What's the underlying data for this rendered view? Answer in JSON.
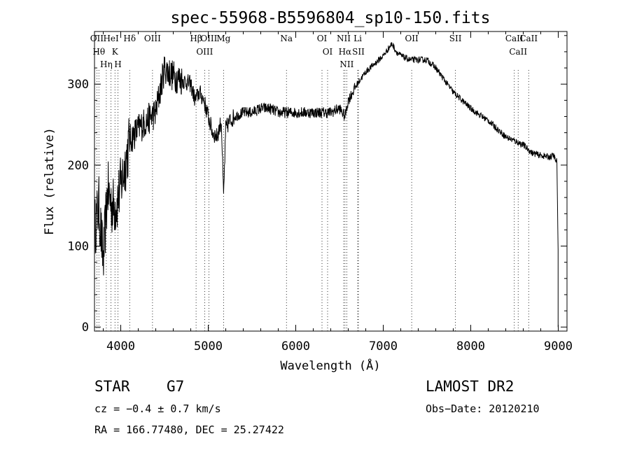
{
  "chart_data": {
    "type": "line",
    "title": "spec-55968-B5596804_sp10-150.fits",
    "xlabel": "Wavelength (Å)",
    "ylabel": "Flux (relative)",
    "xlim": [
      3700,
      9100
    ],
    "ylim": [
      -5,
      365
    ],
    "x_ticks": [
      4000,
      5000,
      6000,
      7000,
      8000,
      9000
    ],
    "y_ticks": [
      0,
      100,
      200,
      300
    ],
    "grid": false,
    "series": [
      {
        "x": [
          3700,
          3750,
          3800,
          3850,
          3900,
          3950,
          4000,
          4050,
          4100,
          4200,
          4300,
          4400,
          4500,
          4550,
          4600,
          4700,
          4800,
          4850,
          4900,
          4950,
          5000,
          5050,
          5100,
          5150,
          5175,
          5200,
          5250,
          5300,
          5400,
          5500,
          5600,
          5700,
          5800,
          5900,
          6000,
          6100,
          6200,
          6300,
          6400,
          6500,
          6563,
          6600,
          6700,
          6800,
          6900,
          7000,
          7100,
          7150,
          7200,
          7300,
          7400,
          7500,
          7600,
          7700,
          7800,
          7900,
          8000,
          8100,
          8200,
          8300,
          8400,
          8500,
          8600,
          8700,
          8800,
          8900,
          8950,
          8970,
          8985,
          8998
        ],
        "y": [
          120,
          150,
          80,
          170,
          150,
          150,
          175,
          200,
          230,
          245,
          255,
          265,
          320,
          315,
          310,
          305,
          300,
          280,
          290,
          280,
          260,
          240,
          235,
          255,
          160,
          245,
          255,
          260,
          265,
          265,
          270,
          270,
          265,
          265,
          265,
          265,
          265,
          265,
          265,
          270,
          260,
          280,
          300,
          315,
          325,
          335,
          350,
          340,
          335,
          330,
          330,
          330,
          320,
          305,
          290,
          280,
          270,
          262,
          255,
          245,
          235,
          230,
          225,
          215,
          212,
          210,
          212,
          205,
          205,
          95
        ]
      }
    ],
    "line_labels": [
      {
        "label": "OII",
        "wavelength": 3727
      },
      {
        "label": "Hθ",
        "wavelength": 3750
      },
      {
        "label": "Hη",
        "wavelength": 3835
      },
      {
        "label": "HeI",
        "wavelength": 3889
      },
      {
        "label": "K",
        "wavelength": 3934
      },
      {
        "label": "H",
        "wavelength": 3968
      },
      {
        "label": "Hδ",
        "wavelength": 4102
      },
      {
        "label": "OIII",
        "wavelength": 4363
      },
      {
        "label": "Hβ",
        "wavelength": 4861
      },
      {
        "label": "OIII",
        "wavelength": 4959
      },
      {
        "label": "OIII",
        "wavelength": 5007
      },
      {
        "label": "Mg",
        "wavelength": 5175
      },
      {
        "label": "Na",
        "wavelength": 5894
      },
      {
        "label": "OI",
        "wavelength": 6300
      },
      {
        "label": "OI",
        "wavelength": 6364
      },
      {
        "label": "NII",
        "wavelength": 6548
      },
      {
        "label": "Hα",
        "wavelength": 6563
      },
      {
        "label": "NII",
        "wavelength": 6583
      },
      {
        "label": "SII",
        "wavelength": 6716
      },
      {
        "label": "Li",
        "wavelength": 6708
      },
      {
        "label": "OII",
        "wavelength": 7325
      },
      {
        "label": "SII",
        "wavelength": 7825
      },
      {
        "label": "CaII",
        "wavelength": 8498
      },
      {
        "label": "CaII",
        "wavelength": 8542
      },
      {
        "label": "CaII",
        "wavelength": 8662
      }
    ]
  },
  "info": {
    "object_class": "STAR",
    "subclass": "G7",
    "survey": "LAMOST DR2",
    "redshift": "cz = −0.4 ± 0.7 km/s",
    "obs_date": "Obs−Date: 20120210",
    "coords": "RA = 166.77480, DEC =  25.27422"
  }
}
